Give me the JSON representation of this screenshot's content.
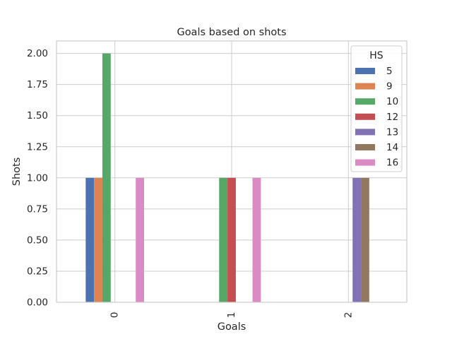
{
  "chart_data": {
    "type": "bar",
    "title": "Goals based on shots",
    "xlabel": "Goals",
    "ylabel": "Shots",
    "categories": [
      "0",
      "1",
      "2"
    ],
    "ylim": [
      0,
      2.1
    ],
    "yticks": [
      "0.00",
      "0.25",
      "0.50",
      "0.75",
      "1.00",
      "1.25",
      "1.50",
      "1.75",
      "2.00"
    ],
    "grid": true,
    "legend": {
      "title": "HS",
      "placement": "top-right"
    },
    "series": [
      {
        "name": "5",
        "color": "#4c72b0",
        "values": [
          1,
          0,
          0
        ]
      },
      {
        "name": "9",
        "color": "#dd8452",
        "values": [
          1,
          0,
          0
        ]
      },
      {
        "name": "10",
        "color": "#55a868",
        "values": [
          2,
          1,
          0
        ]
      },
      {
        "name": "12",
        "color": "#c44e52",
        "values": [
          0,
          1,
          0
        ]
      },
      {
        "name": "13",
        "color": "#8172b3",
        "values": [
          0,
          0,
          1
        ]
      },
      {
        "name": "14",
        "color": "#937860",
        "values": [
          0,
          0,
          1
        ]
      },
      {
        "name": "16",
        "color": "#da8bc3",
        "values": [
          1,
          1,
          0
        ]
      }
    ]
  }
}
